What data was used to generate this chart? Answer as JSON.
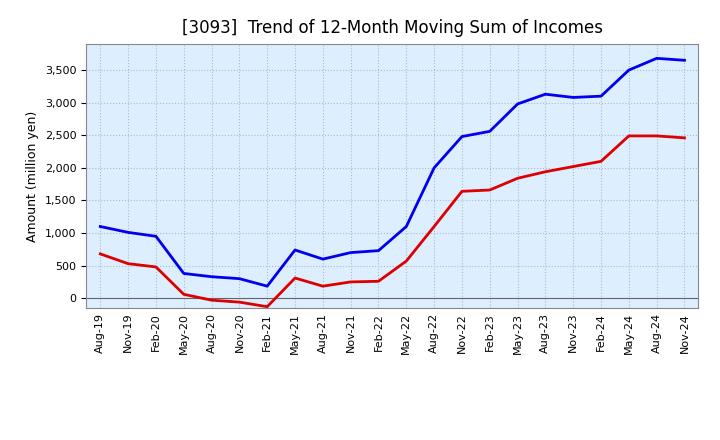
{
  "title": "[3093]  Trend of 12-Month Moving Sum of Incomes",
  "ylabel": "Amount (million yen)",
  "x_labels": [
    "Aug-19",
    "Nov-19",
    "Feb-20",
    "May-20",
    "Aug-20",
    "Nov-20",
    "Feb-21",
    "May-21",
    "Aug-21",
    "Nov-21",
    "Feb-22",
    "May-22",
    "Aug-22",
    "Nov-22",
    "Feb-23",
    "May-23",
    "Aug-23",
    "Nov-23",
    "Feb-24",
    "May-24",
    "Aug-24",
    "Nov-24"
  ],
  "ordinary_income": [
    1100,
    1010,
    950,
    380,
    330,
    300,
    185,
    740,
    600,
    700,
    730,
    1100,
    2000,
    2480,
    2560,
    2980,
    3130,
    3080,
    3100,
    3500,
    3680,
    3650
  ],
  "net_income": [
    680,
    530,
    480,
    60,
    -30,
    -60,
    -130,
    310,
    185,
    250,
    260,
    570,
    1100,
    1640,
    1660,
    1840,
    1940,
    2020,
    2100,
    2490,
    2490,
    2460
  ],
  "ordinary_income_color": "#0000EE",
  "net_income_color": "#DD0000",
  "ylim_min": -150,
  "ylim_max": 3900,
  "yticks": [
    0,
    500,
    1000,
    1500,
    2000,
    2500,
    3000,
    3500
  ],
  "plot_bg_color": "#DDEEFF",
  "fig_bg_color": "#FFFFFF",
  "grid_color": "#AABBCC",
  "title_fontsize": 12,
  "axis_label_fontsize": 9,
  "tick_fontsize": 8,
  "line_width": 2.0,
  "legend_fontsize": 10
}
